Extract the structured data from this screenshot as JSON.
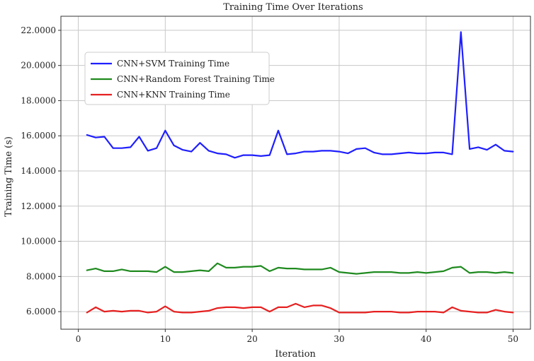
{
  "chart_data": {
    "type": "line",
    "title": "Training Time Over Iterations",
    "xlabel": "Iteration",
    "ylabel": "Training Time (s)",
    "xlim": [
      -2,
      52
    ],
    "ylim": [
      5.0,
      22.8
    ],
    "x_ticks": [
      0,
      10,
      20,
      30,
      40,
      50
    ],
    "x_tick_labels": [
      "0",
      "10",
      "20",
      "30",
      "40",
      "50"
    ],
    "y_ticks": [
      6,
      8,
      10,
      12,
      14,
      16,
      18,
      20,
      22
    ],
    "y_tick_labels": [
      "6.0000",
      "8.0000",
      "10.0000",
      "12.0000",
      "14.0000",
      "16.0000",
      "18.0000",
      "20.0000",
      "22.0000"
    ],
    "grid": true,
    "legend_position": "upper-left",
    "x": [
      1,
      2,
      3,
      4,
      5,
      6,
      7,
      8,
      9,
      10,
      11,
      12,
      13,
      14,
      15,
      16,
      17,
      18,
      19,
      20,
      21,
      22,
      23,
      24,
      25,
      26,
      27,
      28,
      29,
      30,
      31,
      32,
      33,
      34,
      35,
      36,
      37,
      38,
      39,
      40,
      41,
      42,
      43,
      44,
      45,
      46,
      47,
      48,
      49,
      50
    ],
    "series": [
      {
        "name": "CNN+SVM Training Time",
        "color": "#1f1fff",
        "values": [
          16.05,
          15.9,
          15.95,
          15.3,
          15.3,
          15.35,
          15.95,
          15.15,
          15.3,
          16.3,
          15.45,
          15.2,
          15.1,
          15.6,
          15.15,
          15.0,
          14.95,
          14.75,
          14.9,
          14.9,
          14.85,
          14.9,
          16.3,
          14.95,
          15.0,
          15.1,
          15.1,
          15.15,
          15.15,
          15.1,
          15.0,
          15.25,
          15.3,
          15.05,
          14.95,
          14.95,
          15.0,
          15.05,
          15.0,
          15.0,
          15.05,
          15.05,
          14.95,
          21.9,
          15.25,
          15.35,
          15.2,
          15.5,
          15.15,
          15.1
        ]
      },
      {
        "name": "CNN+Random Forest Training Time",
        "color": "#1f8a1f",
        "values": [
          8.35,
          8.45,
          8.3,
          8.3,
          8.4,
          8.3,
          8.3,
          8.3,
          8.25,
          8.55,
          8.25,
          8.25,
          8.3,
          8.35,
          8.3,
          8.75,
          8.5,
          8.5,
          8.55,
          8.55,
          8.6,
          8.3,
          8.5,
          8.45,
          8.45,
          8.4,
          8.4,
          8.4,
          8.5,
          8.25,
          8.2,
          8.15,
          8.2,
          8.25,
          8.25,
          8.25,
          8.2,
          8.2,
          8.25,
          8.2,
          8.25,
          8.3,
          8.5,
          8.55,
          8.2,
          8.25,
          8.25,
          8.2,
          8.25,
          8.2
        ]
      },
      {
        "name": "CNN+KNN Training Time",
        "color": "#e62020",
        "values": [
          5.95,
          6.25,
          6.0,
          6.05,
          6.0,
          6.05,
          6.05,
          5.95,
          6.0,
          6.3,
          6.0,
          5.95,
          5.95,
          6.0,
          6.05,
          6.2,
          6.25,
          6.25,
          6.2,
          6.25,
          6.25,
          6.0,
          6.25,
          6.25,
          6.45,
          6.25,
          6.35,
          6.35,
          6.2,
          5.95,
          5.95,
          5.95,
          5.95,
          6.0,
          6.0,
          6.0,
          5.95,
          5.95,
          6.0,
          6.0,
          6.0,
          5.95,
          6.25,
          6.05,
          6.0,
          5.95,
          5.95,
          6.1,
          6.0,
          5.95
        ]
      }
    ]
  }
}
